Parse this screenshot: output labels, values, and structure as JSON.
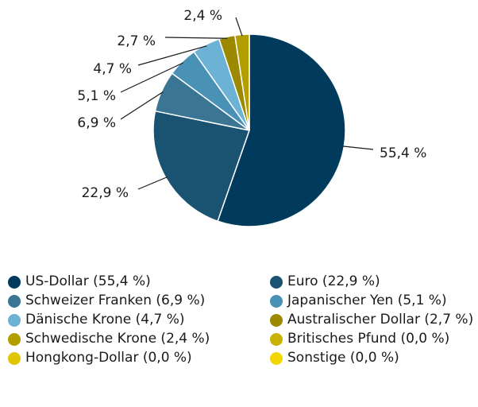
{
  "chart_data": {
    "type": "pie",
    "categories": [
      "US-Dollar (55,4 %)",
      "Euro (22,9 %)",
      "Schweizer Franken (6,9 %)",
      "Japanischer Yen (5,1 %)",
      "Dänische Krone (4,7 %)",
      "Australischer Dollar (2,7 %)",
      "Schwedische Krone (2,4 %)",
      "Britisches Pfund (0,0 %)",
      "Hongkong-Dollar (0,0 %)",
      "Sonstige (0,0 %)"
    ],
    "values": [
      55.4,
      22.9,
      6.9,
      5.1,
      4.7,
      2.7,
      2.4,
      0.0,
      0.0,
      0.0
    ],
    "value_labels": [
      "55,4 %",
      "22,9 %",
      "6,9 %",
      "5,1 %",
      "4,7 %",
      "2,7 %",
      "2,4 %",
      null,
      null,
      null
    ],
    "colors": [
      "#003a5c",
      "#1a5372",
      "#3a7593",
      "#4a91b6",
      "#6cb2d5",
      "#9c8900",
      "#b39e00",
      "#c9b200",
      "#e0c600",
      "#f2d600"
    ]
  }
}
